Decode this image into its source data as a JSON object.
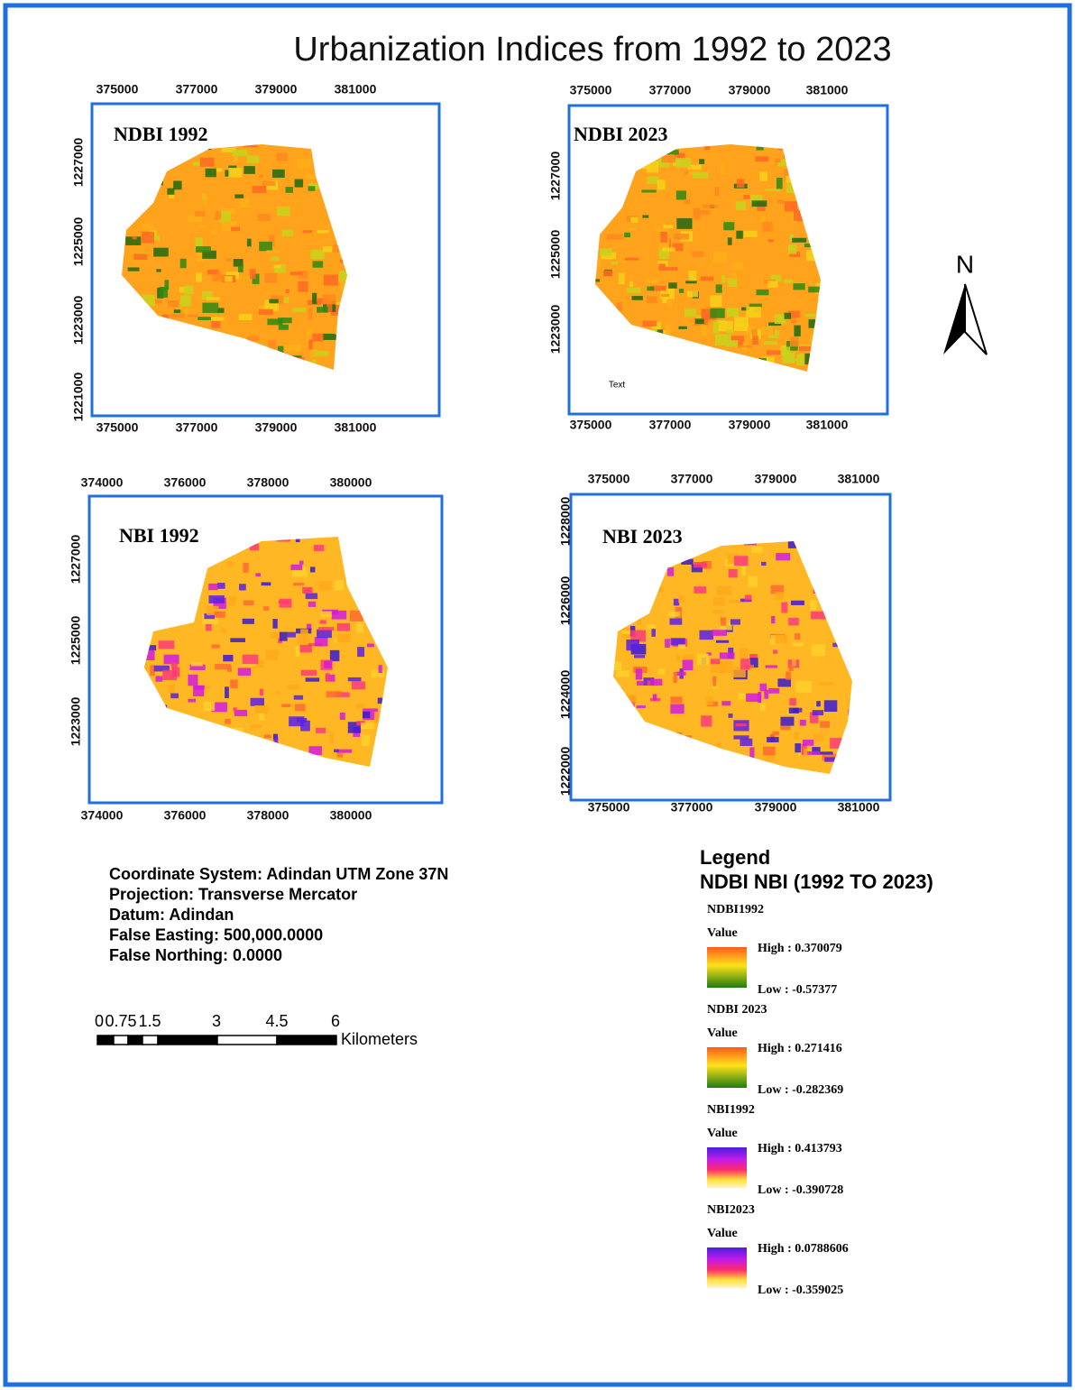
{
  "title": "Urbanization Indices from 1992 to 2023",
  "panels": [
    {
      "label": "NDBI 1992",
      "top_ticks": [
        "375000",
        "377000",
        "379000",
        "381000"
      ],
      "bottom_ticks": [
        "375000",
        "377000",
        "379000",
        "381000"
      ],
      "left_ticks": [
        "1227000",
        "1225000",
        "1223000",
        "1221000"
      ]
    },
    {
      "label": "NDBI 2023",
      "top_ticks": [
        "375000",
        "377000",
        "379000",
        "381000"
      ],
      "bottom_ticks": [
        "375000",
        "377000",
        "379000",
        "381000"
      ],
      "left_ticks": [
        "1227000",
        "1225000",
        "1223000"
      ],
      "note": "Text"
    },
    {
      "label": "NBI 1992",
      "top_ticks": [
        "374000",
        "376000",
        "378000",
        "380000"
      ],
      "bottom_ticks": [
        "374000",
        "376000",
        "378000",
        "380000"
      ],
      "left_ticks": [
        "1227000",
        "1225000",
        "1223000"
      ]
    },
    {
      "label": "NBI 2023",
      "top_ticks": [
        "375000",
        "377000",
        "379000",
        "381000"
      ],
      "bottom_ticks": [
        "375000",
        "377000",
        "379000",
        "381000"
      ],
      "left_ticks": [
        "1228000",
        "1226000",
        "1224000",
        "1222000"
      ]
    }
  ],
  "north_arrow": "N",
  "coordinate_info": [
    "Coordinate System: Adindan UTM Zone 37N",
    "Projection: Transverse Mercator",
    "Datum: Adindan",
    "False Easting: 500,000.0000",
    "False Northing: 0.0000"
  ],
  "scale_bar": {
    "ticks": [
      "0",
      "0.75",
      "1.5",
      "3",
      "4.5",
      "6"
    ],
    "unit": "Kilometers"
  },
  "legend": {
    "title": "Legend",
    "subtitle": "NDBI NBI (1992 TO 2023)",
    "items": [
      {
        "name": "NDBI1992",
        "field": "Value",
        "high": "High : 0.370079",
        "low": "Low : -0.57377"
      },
      {
        "name": "NDBI 2023",
        "field": "Value",
        "high": "High : 0.271416",
        "low": "Low : -0.282369"
      },
      {
        "name": "NBI1992",
        "field": "Value",
        "high": "High : 0.413793",
        "low": "Low : -0.390728"
      },
      {
        "name": "NBI2023",
        "field": "Value",
        "high": "High : 0.0788606",
        "low": "Low : -0.359025"
      }
    ]
  }
}
